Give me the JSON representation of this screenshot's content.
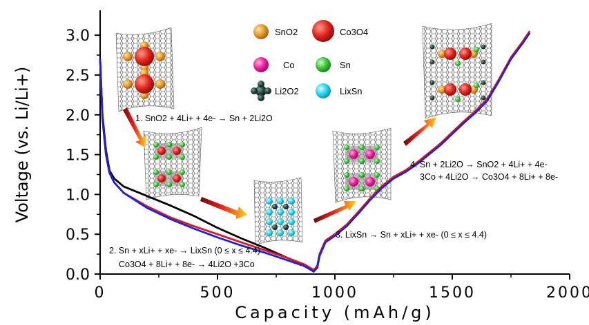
{
  "chart_data": {
    "type": "line",
    "xlabel": "Capacity (mAh/g)",
    "ylabel": "Voltage (vs. Li/Li+)",
    "xlim": [
      0,
      2000
    ],
    "ylim": [
      0,
      3.2
    ],
    "x_ticks": [
      "0",
      "500",
      "1000",
      "1500",
      "2000"
    ],
    "y_ticks": [
      "0.0",
      "0.5",
      "1.0",
      "1.5",
      "2.0",
      "2.5",
      "3.0"
    ],
    "grid": false,
    "series": [
      {
        "color": "#000000",
        "x": [
          0,
          10,
          25,
          40,
          60,
          100,
          200,
          300,
          400,
          500,
          600,
          700,
          800,
          870,
          910,
          925,
          935,
          960,
          1000,
          1050,
          1100,
          1150,
          1200,
          1250,
          1300,
          1350,
          1400,
          1450,
          1500,
          1550,
          1600,
          1650,
          1700,
          1750,
          1800,
          1830
        ],
        "y": [
          2.7,
          2.0,
          1.55,
          1.3,
          1.2,
          1.1,
          0.98,
          0.86,
          0.73,
          0.58,
          0.45,
          0.33,
          0.2,
          0.12,
          0.05,
          0.1,
          0.25,
          0.42,
          0.5,
          0.62,
          0.78,
          0.95,
          1.1,
          1.22,
          1.3,
          1.4,
          1.52,
          1.64,
          1.78,
          1.92,
          2.05,
          2.2,
          2.45,
          2.72,
          2.92,
          3.05
        ]
      },
      {
        "color": "#e8131c",
        "x": [
          0,
          10,
          25,
          40,
          60,
          100,
          200,
          300,
          400,
          500,
          600,
          700,
          800,
          870,
          910,
          925,
          935,
          960,
          1000,
          1050,
          1100,
          1150,
          1200,
          1250,
          1300,
          1350,
          1400,
          1450,
          1500,
          1550,
          1600,
          1650,
          1700,
          1750,
          1800,
          1830
        ],
        "y": [
          2.7,
          1.95,
          1.5,
          1.27,
          1.15,
          1.02,
          0.85,
          0.71,
          0.6,
          0.5,
          0.4,
          0.3,
          0.2,
          0.12,
          0.05,
          0.1,
          0.25,
          0.42,
          0.5,
          0.62,
          0.78,
          0.95,
          1.1,
          1.22,
          1.3,
          1.4,
          1.52,
          1.64,
          1.78,
          1.92,
          2.05,
          2.2,
          2.45,
          2.72,
          2.92,
          3.05
        ]
      },
      {
        "color": "#1b24d6",
        "x": [
          0,
          10,
          25,
          40,
          60,
          100,
          200,
          300,
          400,
          500,
          600,
          700,
          800,
          870,
          910,
          925,
          935,
          960,
          1000,
          1050,
          1100,
          1150,
          1200,
          1250,
          1300,
          1350,
          1400,
          1450,
          1500,
          1550,
          1600,
          1650,
          1700,
          1750,
          1800,
          1830
        ],
        "y": [
          2.7,
          1.95,
          1.5,
          1.27,
          1.15,
          1.02,
          0.83,
          0.69,
          0.57,
          0.46,
          0.36,
          0.27,
          0.17,
          0.1,
          0.03,
          0.08,
          0.23,
          0.4,
          0.48,
          0.6,
          0.76,
          0.93,
          1.08,
          1.2,
          1.28,
          1.38,
          1.5,
          1.62,
          1.76,
          1.9,
          2.03,
          2.18,
          2.43,
          2.7,
          2.9,
          3.03
        ]
      }
    ],
    "annotations": [
      "1. SnO2 + 4Li+ + 4e- → Sn + 2Li2O",
      "2. Sn + xLi+ + xe- → LixSn (0 ≤ x ≤ 4.4)",
      "Co3O4 + 8Li+ + 8e- → 4Li2O +3Co",
      "3. LixSn → Sn + xLi+ + xe- (0 ≤ x ≤ 4.4)",
      "4. Sn + 2Li2O → SnO2 + 4Li+ + 4e-",
      "3Co + 4Li2O → Co3O4 + 8Li+ + 8e-"
    ],
    "legend": {
      "placement": "top-center",
      "items": [
        {
          "label": "SnO2",
          "color": "#e59a2a",
          "icon": "orange-sphere"
        },
        {
          "label": "Co3O4",
          "color": "#e0261e",
          "icon": "red-sphere"
        },
        {
          "label": "Co",
          "color": "#ee1f9d",
          "icon": "magenta-sphere"
        },
        {
          "label": "Sn",
          "color": "#3ec43a",
          "icon": "green-sphere"
        },
        {
          "label": "Li2O2",
          "color": "#22433b",
          "icon": "dark-cluster"
        },
        {
          "label": "LixSn",
          "color": "#22d6f2",
          "icon": "cyan-sphere"
        }
      ]
    }
  }
}
